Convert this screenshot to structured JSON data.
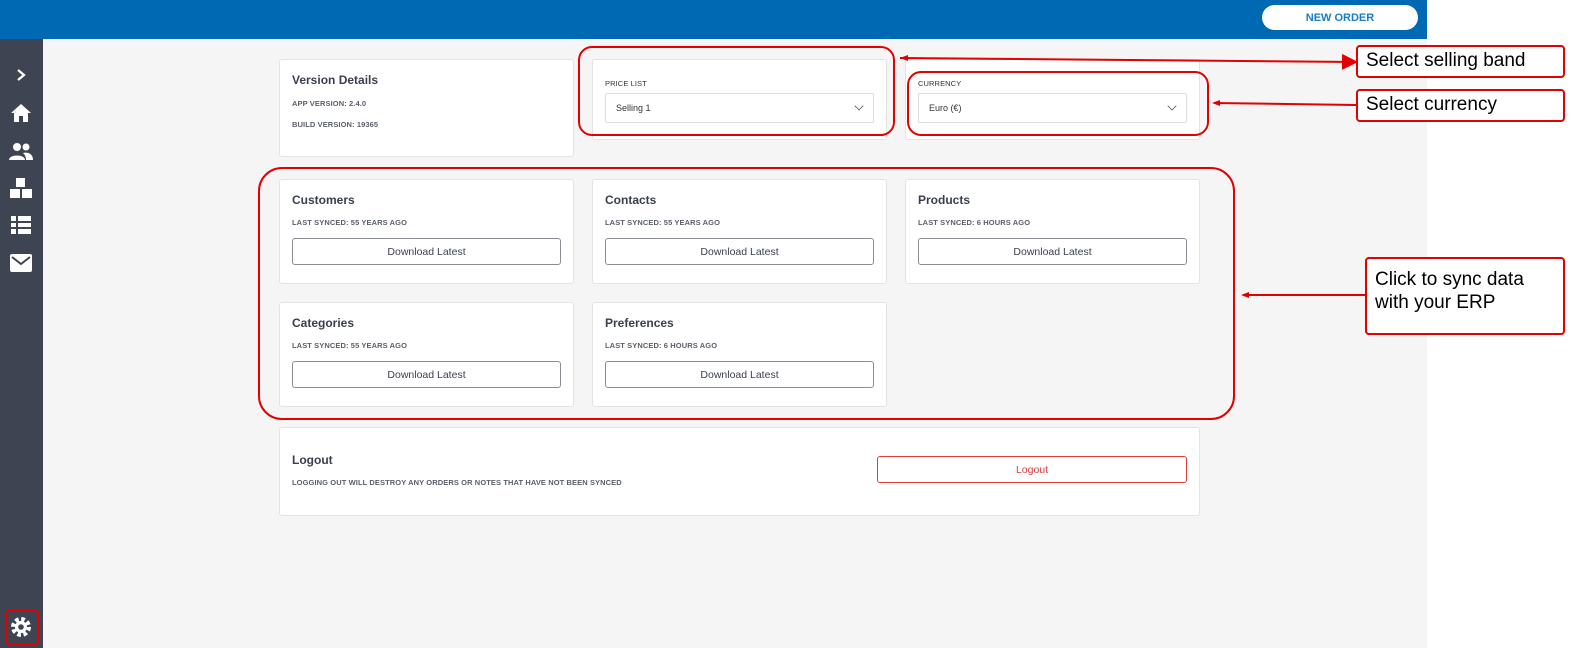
{
  "header": {
    "new_order_label": "NEW ORDER"
  },
  "sidebar": {
    "items": [
      "expand",
      "home",
      "customers",
      "products",
      "orders",
      "messages",
      "settings"
    ]
  },
  "version": {
    "title": "Version Details",
    "app_version": "APP VERSION: 2.4.0",
    "build_version": "BUILD VERSION: 19365"
  },
  "price_list": {
    "label": "PRICE LIST",
    "value": "Selling 1"
  },
  "currency": {
    "label": "CURRENCY",
    "value": "Euro (€)"
  },
  "sync": [
    {
      "title": "Customers",
      "status": "LAST SYNCED: 55 YEARS AGO",
      "button": "Download Latest"
    },
    {
      "title": "Contacts",
      "status": "LAST SYNCED: 55 YEARS AGO",
      "button": "Download Latest"
    },
    {
      "title": "Products",
      "status": "LAST SYNCED: 6 HOURS AGO",
      "button": "Download Latest"
    },
    {
      "title": "Categories",
      "status": "LAST SYNCED: 55 YEARS AGO",
      "button": "Download Latest"
    },
    {
      "title": "Preferences",
      "status": "LAST SYNCED: 6 HOURS AGO",
      "button": "Download Latest"
    }
  ],
  "logout": {
    "title": "Logout",
    "warning": "LOGGING OUT WILL DESTROY ANY ORDERS OR NOTES THAT HAVE NOT BEEN SYNCED",
    "button": "Logout"
  },
  "annotations": {
    "selling_band": "Select selling band",
    "currency": "Select currency",
    "sync": "Click to sync data with your ERP"
  },
  "colors": {
    "header": "#0069b4",
    "sidebar": "#3f4452",
    "annotation": "#e30000",
    "logout": "#e03c3c"
  }
}
